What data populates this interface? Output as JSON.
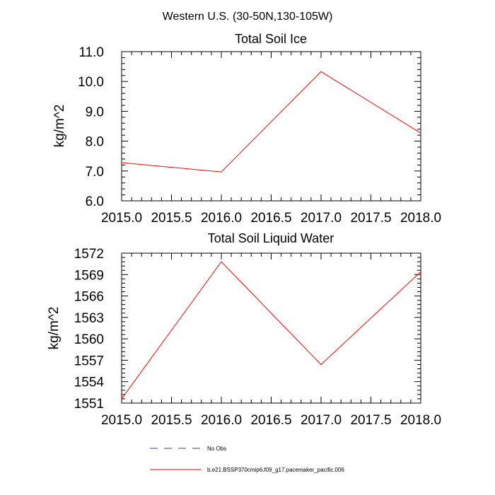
{
  "suptitle": "Western U.S. (30-50N,130-105W)",
  "chart_data": [
    {
      "type": "line",
      "title": "Total Soil Ice",
      "xlabel": "",
      "ylabel": "kg/m^2",
      "xlim": [
        2015.0,
        2018.0
      ],
      "ylim": [
        6.0,
        11.0
      ],
      "xticks": [
        "2015.0",
        "2015.5",
        "2016.0",
        "2016.5",
        "2017.0",
        "2017.5",
        "2018.0"
      ],
      "yticks": [
        "6.0",
        "7.0",
        "8.0",
        "9.0",
        "10.0",
        "11.0"
      ],
      "grid": false,
      "series": [
        {
          "name": "b.e21.BSSP370cmip6.f09_g17.pacemaker_pacific.006",
          "color": "#ff0000",
          "x": [
            2015.0,
            2016.0,
            2017.0,
            2018.0
          ],
          "values": [
            7.28,
            6.97,
            10.33,
            8.27
          ]
        }
      ]
    },
    {
      "type": "line",
      "title": "Total Soil Liquid Water",
      "xlabel": "",
      "ylabel": "kg/m^2",
      "xlim": [
        2015.0,
        2018.0
      ],
      "ylim": [
        1551,
        1572
      ],
      "xticks": [
        "2015.0",
        "2015.5",
        "2016.0",
        "2016.5",
        "2017.0",
        "2017.5",
        "2018.0"
      ],
      "yticks": [
        "1551",
        "1554",
        "1557",
        "1560",
        "1563",
        "1566",
        "1569",
        "1572"
      ],
      "grid": false,
      "series": [
        {
          "name": "b.e21.BSSP370cmip6.f09_g17.pacemaker_pacific.006",
          "color": "#ff0000",
          "x": [
            2015.0,
            2016.0,
            2017.0,
            2018.0
          ],
          "values": [
            1551.6,
            1570.8,
            1556.4,
            1569.4
          ]
        }
      ]
    }
  ],
  "legend": [
    {
      "label": "No Obs",
      "color": "#3a3aa8",
      "dash": true
    },
    {
      "label": "b.e21.BSSP370cmip6.f09_g17.pacemaker_pacific.006",
      "color": "#ff0000",
      "dash": false
    }
  ]
}
